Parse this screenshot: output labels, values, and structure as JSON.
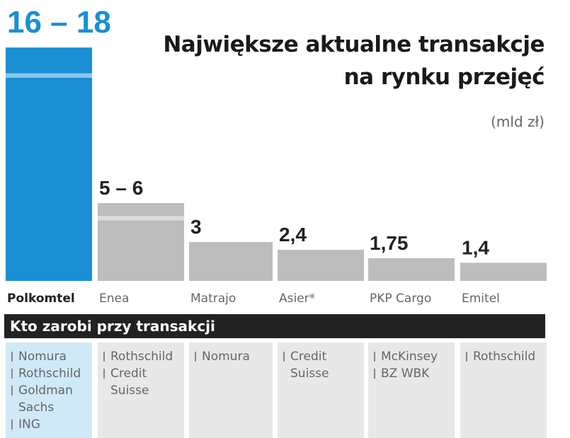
{
  "chart_data": {
    "type": "bar",
    "title": "Największe aktualne transakcje na rynku przejęć",
    "title_lines": [
      "Największe aktualne transakcje",
      "na rynku przejęć"
    ],
    "unit": "(mld zł)",
    "categories": [
      "Polkomtel",
      "Enea",
      "Matrajo",
      "Asier*",
      "PKP Cargo",
      "Emitel"
    ],
    "values": [
      18,
      6,
      3,
      2.4,
      1.75,
      1.4
    ],
    "ranges": [
      [
        16,
        18
      ],
      [
        5,
        6
      ],
      null,
      null,
      null,
      null
    ],
    "value_labels": [
      "16 – 18",
      "5 – 6",
      "3",
      "2,4",
      "1,75",
      "1,4"
    ],
    "ylim": [
      0,
      18.5
    ],
    "colors": {
      "highlight": "#1a8fd4",
      "highlight_light": "#8cc7ea",
      "bar": "#bdbdbd",
      "bar_light": "#dcdcdc"
    }
  },
  "advisors": {
    "header": "Kto zarobi przy transakcji",
    "columns": [
      [
        "Nomura",
        "Rothschild",
        "Goldman Sachs",
        "ING"
      ],
      [
        "Rothschild",
        "Credit Suisse"
      ],
      [
        "Nomura"
      ],
      [
        "Credit Suisse"
      ],
      [
        "McKinsey",
        "BZ WBK"
      ],
      [
        "Rothschild"
      ]
    ]
  }
}
